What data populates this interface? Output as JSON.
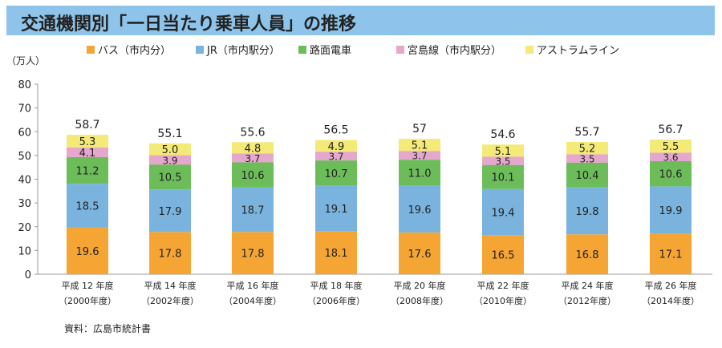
{
  "chart_data": {
    "type": "bar",
    "stacked": true,
    "title": "交通機関別「一日当たり乗車人員」の推移",
    "ylabel": "（万人）",
    "ylim": [
      0,
      80
    ],
    "yticks": [
      0,
      10,
      20,
      30,
      40,
      50,
      60,
      70,
      80
    ],
    "grid": false,
    "legend": "top",
    "categories": [
      {
        "line1": "平成 12 年度",
        "line2": "（2000年度）"
      },
      {
        "line1": "平成 14 年度",
        "line2": "（2002年度）"
      },
      {
        "line1": "平成 16 年度",
        "line2": "（2004年度）"
      },
      {
        "line1": "平成 18 年度",
        "line2": "（2006年度）"
      },
      {
        "line1": "平成 20 年度",
        "line2": "（2008年度）"
      },
      {
        "line1": "平成 22 年度",
        "line2": "（2010年度）"
      },
      {
        "line1": "平成 24 年度",
        "line2": "（2012年度）"
      },
      {
        "line1": "平成 26 年度",
        "line2": "（2014年度）"
      }
    ],
    "series": [
      {
        "name": "バス（市内分）",
        "color": "#f5a534",
        "values": [
          19.6,
          17.8,
          17.8,
          18.1,
          17.6,
          16.5,
          16.8,
          17.1
        ],
        "labels": [
          "19.6",
          "17.8",
          "17.8",
          "18.1",
          "17.6",
          "16.5",
          "16.8",
          "17.1"
        ]
      },
      {
        "name": "JR（市内駅分）",
        "color": "#7ab4de",
        "values": [
          18.5,
          17.9,
          18.7,
          19.1,
          19.6,
          19.4,
          19.8,
          19.9
        ],
        "labels": [
          "18.5",
          "17.9",
          "18.7",
          "19.1",
          "19.6",
          "19.4",
          "19.8",
          "19.9"
        ]
      },
      {
        "name": "路面電車",
        "color": "#6cbd5a",
        "values": [
          11.2,
          10.5,
          10.6,
          10.7,
          11.0,
          10.1,
          10.4,
          10.6
        ],
        "labels": [
          "11.2",
          "10.5",
          "10.6",
          "10.7",
          "11.0",
          "10.1",
          "10.4",
          "10.6"
        ]
      },
      {
        "name": "宮島線（市内駅分）",
        "color": "#e5a7cc",
        "values": [
          4.1,
          3.9,
          3.7,
          3.7,
          3.7,
          3.5,
          3.5,
          3.6
        ],
        "labels": [
          "4.1",
          "3.9",
          "3.7",
          "3.7",
          "3.7",
          "3.5",
          "3.5",
          "3.6"
        ]
      },
      {
        "name": "アストラムライン",
        "color": "#f4ea78",
        "values": [
          5.3,
          5.0,
          4.8,
          4.9,
          5.1,
          5.1,
          5.2,
          5.5
        ],
        "labels": [
          "5.3",
          "5.0",
          "4.8",
          "4.9",
          "5.1",
          "5.1",
          "5.2",
          "5.5"
        ]
      }
    ],
    "totals": [
      "58.7",
      "55.1",
      "55.6",
      "56.5",
      "57",
      "54.6",
      "55.7",
      "56.7"
    ],
    "source": "資料：広島市統計書"
  }
}
